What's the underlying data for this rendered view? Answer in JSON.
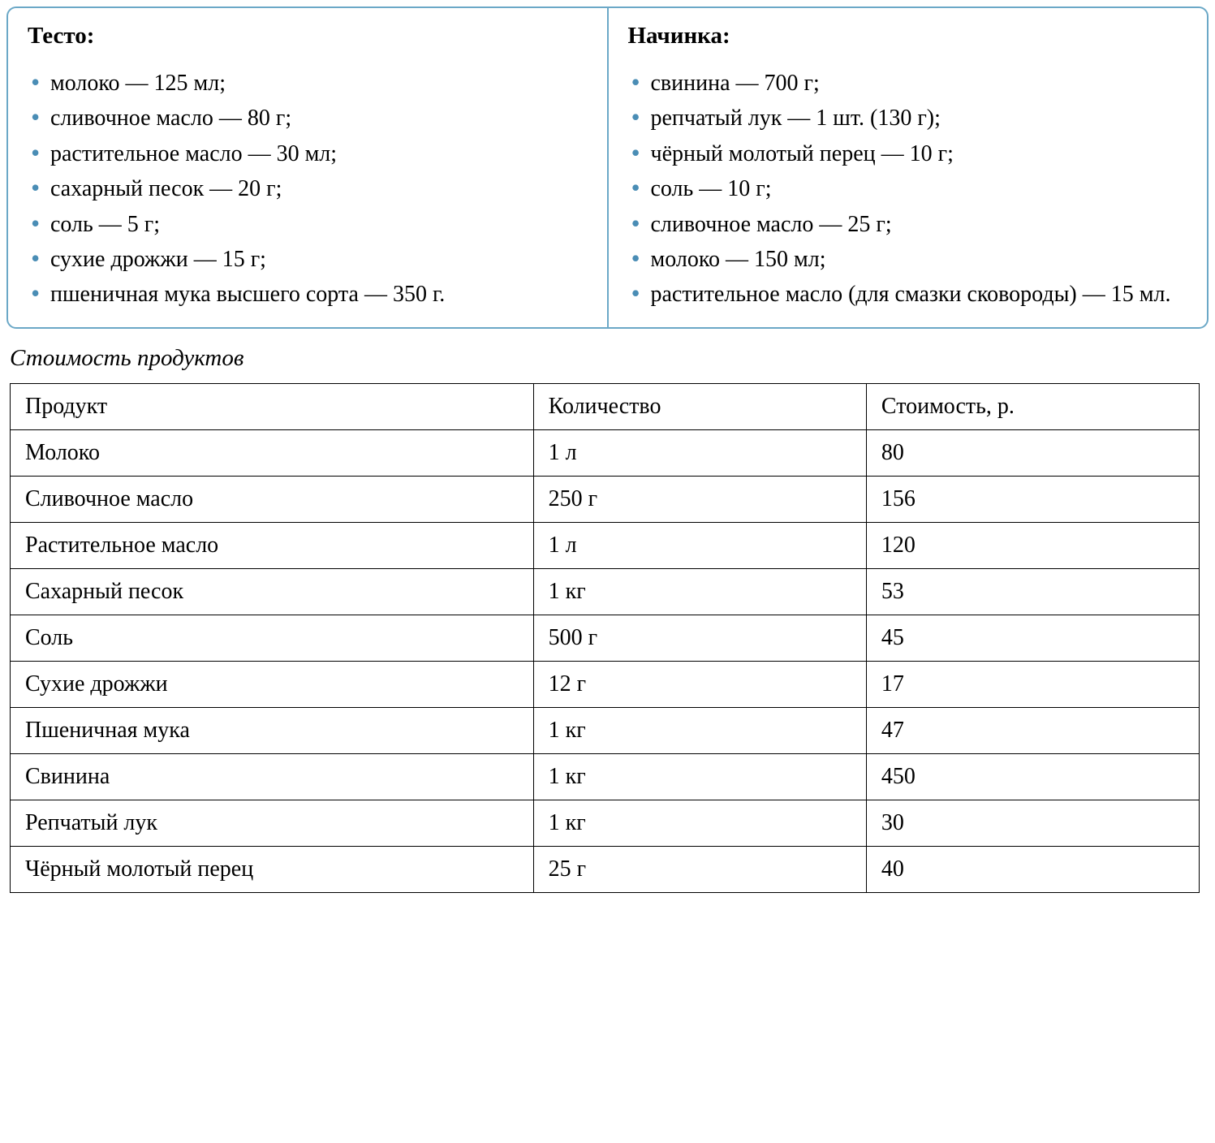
{
  "recipe": {
    "dough": {
      "heading": "Тесто:",
      "items": [
        "молоко — 125 мл;",
        "сливочное масло — 80 г;",
        "растительное масло — 30 мл;",
        "сахарный песок — 20 г;",
        "соль — 5 г;",
        "сухие дрожжи — 15 г;",
        "пшеничная мука высшего сорта — 350 г."
      ]
    },
    "filling": {
      "heading": "Начинка:",
      "items": [
        "свинина — 700 г;",
        "репчатый лук — 1 шт. (130 г);",
        "чёрный молотый перец — 10 г;",
        "соль — 10 г;",
        "сливочное масло — 25 г;",
        "молоко — 150 мл;",
        "растительное масло (для смазки сковороды) — 15 мл."
      ]
    }
  },
  "pricing": {
    "title": "Стоимость продуктов",
    "columns": [
      "Продукт",
      "Количество",
      "Стоимость, р."
    ],
    "rows": [
      [
        "Молоко",
        "1 л",
        "80"
      ],
      [
        "Сливочное масло",
        "250 г",
        "156"
      ],
      [
        "Растительное масло",
        "1 л",
        "120"
      ],
      [
        "Сахарный песок",
        "1 кг",
        "53"
      ],
      [
        "Соль",
        "500 г",
        "45"
      ],
      [
        "Сухие дрожжи",
        "12 г",
        "17"
      ],
      [
        "Пшеничная мука",
        "1 кг",
        "47"
      ],
      [
        "Свинина",
        "1 кг",
        "450"
      ],
      [
        "Репчатый лук",
        "1 кг",
        "30"
      ],
      [
        "Чёрный молотый перец",
        "25 г",
        "40"
      ]
    ]
  },
  "style": {
    "border_color": "#6ba8c7",
    "bullet_color": "#4a8db5",
    "table_border_color": "#000000",
    "background_color": "#ffffff",
    "text_color": "#000000",
    "body_font_size": 28,
    "heading_font_size": 29,
    "title_font_size": 29,
    "font_family": "Times New Roman"
  }
}
